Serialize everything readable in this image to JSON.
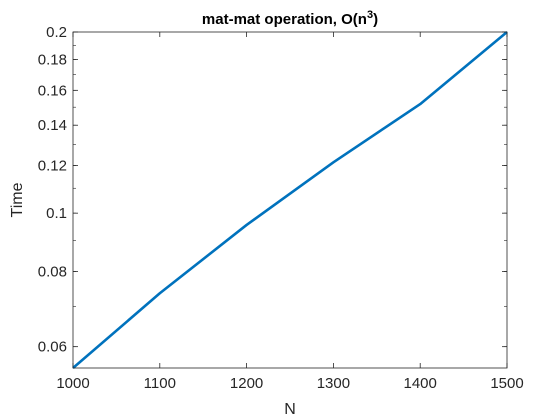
{
  "chart_data": {
    "type": "line",
    "title": "mat-mat operation, O(n",
    "title_superscript": "3",
    "title_suffix": ")",
    "xlabel": "N",
    "ylabel": "Time",
    "xlim": [
      1000,
      1500
    ],
    "ylim": [
      0.0553,
      0.2
    ],
    "yscale": "log",
    "grid": false,
    "x_ticks": [
      1000,
      1100,
      1200,
      1300,
      1400,
      1500
    ],
    "x_tick_labels": [
      "1000",
      "1100",
      "1200",
      "1300",
      "1400",
      "1500"
    ],
    "y_ticks": [
      0.06,
      0.08,
      0.1,
      0.12,
      0.14,
      0.16,
      0.18,
      0.2
    ],
    "y_tick_labels": [
      "0.06",
      "0.08",
      "0.1",
      "0.12",
      "0.14",
      "0.16",
      "0.18",
      "0.2"
    ],
    "series": [
      {
        "color": "#0072BD",
        "x": [
          1000,
          1100,
          1200,
          1300,
          1400,
          1500
        ],
        "y": [
          0.0553,
          0.0736,
          0.0956,
          0.1215,
          0.1518,
          0.2
        ]
      }
    ]
  }
}
